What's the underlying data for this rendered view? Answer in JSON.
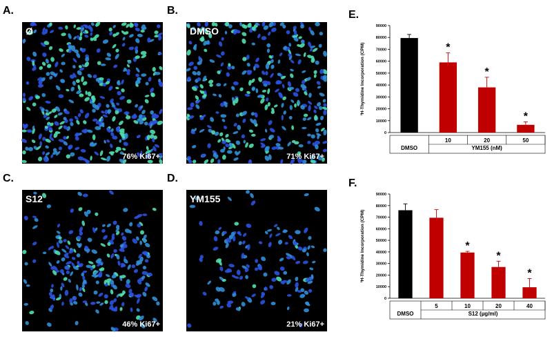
{
  "image_panels": [
    {
      "label": "A.",
      "treatment": "Ø",
      "result": "76% Ki67+"
    },
    {
      "label": "B.",
      "treatment": "DMSO",
      "result": "71% Ki67+"
    },
    {
      "label": "C.",
      "treatment": "S12",
      "result": "46% Ki67+"
    },
    {
      "label": "D.",
      "treatment": "YM155",
      "result": "21% Ki67+"
    }
  ],
  "chart_data": [
    {
      "type": "bar",
      "panel_label": "E.",
      "y_label": "³H-Thymidine Incorporation (CPM)",
      "categories": [
        "DMSO",
        "10",
        "20",
        "50"
      ],
      "group_label": "YM155 (nM)",
      "values": [
        79500,
        59000,
        38000,
        6500
      ],
      "errors": [
        3000,
        8000,
        8500,
        2500
      ],
      "colors": [
        "#000000",
        "#c00000",
        "#c00000",
        "#c00000"
      ],
      "markers": [
        null,
        "*",
        "*",
        "*"
      ],
      "ylim": [
        0,
        90000
      ],
      "yticks": [
        0,
        10000,
        20000,
        30000,
        40000,
        50000,
        60000,
        70000,
        80000,
        90000
      ]
    },
    {
      "type": "bar",
      "panel_label": "F.",
      "y_label": "³H-Thymidine Incorporation (CPM)",
      "categories": [
        "DMSO",
        "5",
        "10",
        "20",
        "40"
      ],
      "group_label": "S12 (µg/ml)",
      "values": [
        76000,
        69500,
        39500,
        27000,
        9500
      ],
      "errors": [
        5500,
        7000,
        1000,
        5000,
        7500
      ],
      "colors": [
        "#000000",
        "#c00000",
        "#c00000",
        "#c00000",
        "#c00000"
      ],
      "markers": [
        null,
        null,
        "*",
        "*",
        "*"
      ],
      "ylim": [
        0,
        90000
      ],
      "yticks": [
        0,
        10000,
        20000,
        30000,
        40000,
        50000,
        60000,
        70000,
        80000,
        90000
      ]
    }
  ]
}
